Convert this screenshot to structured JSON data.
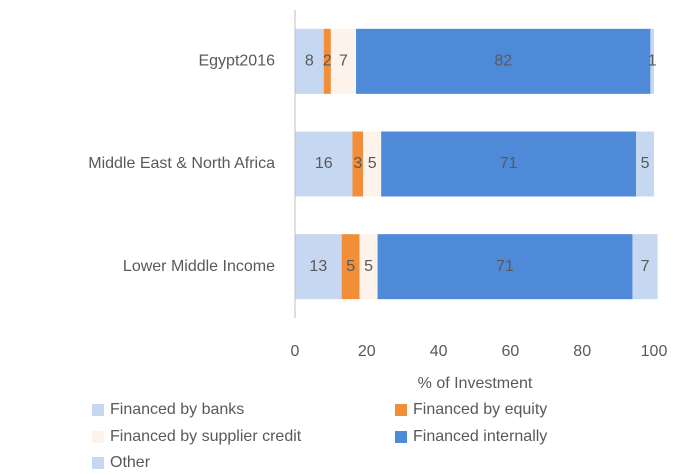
{
  "chart_data": {
    "type": "stacked_bar_horizontal",
    "categories": [
      "Egypt2016",
      "Middle East & North Africa",
      "Lower Middle Income"
    ],
    "series": [
      {
        "name": "Financed by banks",
        "color": "#c6d7f1",
        "values": [
          8,
          16,
          13
        ]
      },
      {
        "name": "Financed by equity",
        "color": "#f28e3a",
        "values": [
          2,
          3,
          5
        ]
      },
      {
        "name": "Financed by supplier credit",
        "color": "#fdf3ea",
        "values": [
          7,
          5,
          5
        ]
      },
      {
        "name": "Financed internally",
        "color": "#4f8ad9",
        "values": [
          82,
          71,
          71
        ]
      },
      {
        "name": "Other",
        "color": "#c6d7f1",
        "values": [
          1,
          5,
          7
        ]
      }
    ],
    "xlabel": "% of Investment",
    "xlim": [
      0,
      100
    ],
    "xticks": [
      0,
      20,
      40,
      60,
      80,
      100
    ],
    "grid": false,
    "legend": "bottom"
  }
}
